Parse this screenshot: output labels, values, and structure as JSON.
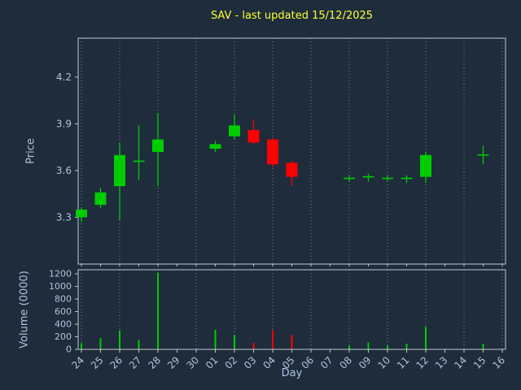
{
  "title": "SAV - last updated 15/12/2025",
  "price_axis": {
    "label": "Price"
  },
  "volume_axis": {
    "label": "Volume (0000)"
  },
  "x_axis": {
    "label": "Day"
  },
  "colors": {
    "background": "#1e2c3c",
    "title": "#ffff33",
    "tick": "#b0c4de",
    "spine": "#bdc8d2",
    "grid": "#8fa3b8",
    "up": "#00cc00",
    "down": "#ff0000"
  },
  "chart_data": {
    "type": "candlestick",
    "title": "SAV - last updated 15/12/2025",
    "xlabel": "Day",
    "up_color": "#00cc00",
    "down_color": "#ff0000",
    "grid": "vertical dotted gridlines every 2nd day, shared across both panels",
    "panels": [
      {
        "ylabel": "Price",
        "ylim": [
          3.0,
          4.45
        ],
        "yticks": [
          3.3,
          3.6,
          3.9,
          4.2
        ]
      },
      {
        "ylabel": "Volume (0000)",
        "ylim": [
          0,
          1265
        ],
        "yticks": [
          0,
          200,
          400,
          600,
          800,
          1000,
          1200
        ]
      }
    ],
    "days": [
      {
        "label": "24",
        "open": 3.3,
        "high": 3.36,
        "low": 3.27,
        "close": 3.35,
        "volume": 100
      },
      {
        "label": "25",
        "open": 3.38,
        "high": 3.49,
        "low": 3.36,
        "close": 3.46,
        "volume": 180
      },
      {
        "label": "26",
        "open": 3.5,
        "high": 3.78,
        "low": 3.28,
        "close": 3.7,
        "volume": 300
      },
      {
        "label": "27",
        "open": 3.65,
        "high": 3.89,
        "low": 3.54,
        "close": 3.66,
        "volume": 150
      },
      {
        "label": "28",
        "open": 3.72,
        "high": 3.97,
        "low": 3.5,
        "close": 3.8,
        "volume": 1220
      },
      {
        "label": "29",
        "open": null,
        "high": null,
        "low": null,
        "close": null,
        "volume": null
      },
      {
        "label": "30",
        "open": null,
        "high": null,
        "low": null,
        "close": null,
        "volume": null
      },
      {
        "label": "01",
        "open": 3.74,
        "high": 3.79,
        "low": 3.72,
        "close": 3.77,
        "volume": 310
      },
      {
        "label": "02",
        "open": 3.82,
        "high": 3.96,
        "low": 3.8,
        "close": 3.89,
        "volume": 230
      },
      {
        "label": "03",
        "open": 3.86,
        "high": 3.93,
        "low": 3.77,
        "close": 3.78,
        "volume": 100
      },
      {
        "label": "04",
        "open": 3.8,
        "high": 3.81,
        "low": 3.62,
        "close": 3.64,
        "volume": 310
      },
      {
        "label": "05",
        "open": 3.65,
        "high": 3.66,
        "low": 3.5,
        "close": 3.56,
        "volume": 230
      },
      {
        "label": "06",
        "open": null,
        "high": null,
        "low": null,
        "close": null,
        "volume": null
      },
      {
        "label": "07",
        "open": null,
        "high": null,
        "low": null,
        "close": null,
        "volume": null
      },
      {
        "label": "08",
        "open": 3.55,
        "high": 3.57,
        "low": 3.53,
        "close": 3.55,
        "volume": 60
      },
      {
        "label": "09",
        "open": 3.55,
        "high": 3.58,
        "low": 3.53,
        "close": 3.56,
        "volume": 110
      },
      {
        "label": "10",
        "open": 3.55,
        "high": 3.57,
        "low": 3.53,
        "close": 3.55,
        "volume": 60
      },
      {
        "label": "11",
        "open": 3.54,
        "high": 3.57,
        "low": 3.52,
        "close": 3.55,
        "volume": 90
      },
      {
        "label": "12",
        "open": 3.56,
        "high": 3.72,
        "low": 3.52,
        "close": 3.7,
        "volume": 360
      },
      {
        "label": "13",
        "open": null,
        "high": null,
        "low": null,
        "close": null,
        "volume": null
      },
      {
        "label": "14",
        "open": null,
        "high": null,
        "low": null,
        "close": null,
        "volume": null
      },
      {
        "label": "15",
        "open": 3.7,
        "high": 3.76,
        "low": 3.64,
        "close": 3.7,
        "volume": 90
      },
      {
        "label": "16",
        "open": null,
        "high": null,
        "low": null,
        "close": null,
        "volume": null
      }
    ]
  }
}
